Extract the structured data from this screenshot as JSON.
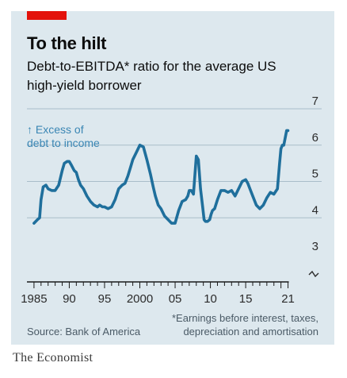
{
  "title": "To the hilt",
  "subtitle": "Debt-to-EBITDA* ratio for the average US high-yield borrower",
  "annotation_line1": "↑ Excess of",
  "annotation_line2": "debt to income",
  "source": "Source: Bank of America",
  "footnote_line1": "*Earnings before interest, taxes,",
  "footnote_line2": "depreciation and amortisation",
  "brand": "The Economist",
  "colors": {
    "line": "#1f6f9c",
    "accent": "#e3120b",
    "panel": "#dde8ee",
    "annotation": "#3a86b4"
  },
  "chart_data": {
    "type": "line",
    "title": "To the hilt",
    "subtitle": "Debt-to-EBITDA* ratio for the average US high-yield borrower",
    "xlabel": "",
    "ylabel": "",
    "ylim": [
      3,
      7
    ],
    "xlim": [
      1984,
      2021.5
    ],
    "y_ticks": [
      "3",
      "4",
      "5",
      "6",
      "7"
    ],
    "x_tick_labels": [
      {
        "x": 1985,
        "label": "1985"
      },
      {
        "x": 1990,
        "label": "90"
      },
      {
        "x": 1995,
        "label": "95"
      },
      {
        "x": 2000,
        "label": "2000"
      },
      {
        "x": 2005,
        "label": "05"
      },
      {
        "x": 2010,
        "label": "10"
      },
      {
        "x": 2015,
        "label": "15"
      },
      {
        "x": 2021,
        "label": "21"
      }
    ],
    "grid": "horizontal",
    "series": [
      {
        "x": [
          1985.0,
          1985.5,
          1985.8,
          1986.0,
          1986.3,
          1986.7,
          1987.0,
          1987.5,
          1988.0,
          1988.5,
          1989.0,
          1989.3,
          1989.7,
          1990.0,
          1990.3,
          1990.7,
          1991.0,
          1991.3,
          1991.6,
          1992.0,
          1992.5,
          1993.0,
          1993.5,
          1994.0,
          1994.3,
          1994.7,
          1995.0,
          1995.5,
          1996.0,
          1996.5,
          1997.0,
          1997.5,
          1997.9,
          1998.3,
          1998.7,
          1999.0,
          1999.5,
          2000.0,
          2000.5,
          2001.0,
          2001.5,
          2001.9,
          2002.2,
          2002.6,
          2003.0,
          2003.5,
          2004.0,
          2004.5,
          2005.0,
          2005.5,
          2006.0,
          2006.5,
          2006.8,
          2007.0,
          2007.3,
          2007.6,
          2008.0,
          2008.3,
          2008.6,
          2008.9,
          2009.1,
          2009.3,
          2009.6,
          2009.9,
          2010.1,
          2010.3,
          2010.6,
          2011.0,
          2011.5,
          2012.0,
          2012.5,
          2013.0,
          2013.5,
          2014.0,
          2014.5,
          2015.0,
          2015.3,
          2015.7,
          2016.0,
          2016.5,
          2017.0,
          2017.5,
          2018.0,
          2018.5,
          2019.0,
          2019.5,
          2019.8,
          2020.0,
          2020.2,
          2020.4,
          2020.6,
          2020.8,
          2021.0
        ],
        "y": [
          3.85,
          3.95,
          4.0,
          4.5,
          4.85,
          4.9,
          4.8,
          4.75,
          4.75,
          4.9,
          5.3,
          5.5,
          5.55,
          5.55,
          5.45,
          5.3,
          5.25,
          5.05,
          4.9,
          4.8,
          4.6,
          4.45,
          4.35,
          4.3,
          4.35,
          4.3,
          4.3,
          4.25,
          4.3,
          4.5,
          4.8,
          4.9,
          4.95,
          5.15,
          5.4,
          5.6,
          5.8,
          6.0,
          5.95,
          5.6,
          5.2,
          4.85,
          4.6,
          4.35,
          4.25,
          4.05,
          3.95,
          3.85,
          3.85,
          4.2,
          4.45,
          4.5,
          4.6,
          4.75,
          4.75,
          4.65,
          5.7,
          5.6,
          4.8,
          4.3,
          3.95,
          3.9,
          3.9,
          3.95,
          4.1,
          4.2,
          4.25,
          4.5,
          4.75,
          4.75,
          4.7,
          4.75,
          4.6,
          4.8,
          5.0,
          5.05,
          4.95,
          4.75,
          4.6,
          4.35,
          4.25,
          4.35,
          4.55,
          4.7,
          4.65,
          4.8,
          5.5,
          5.9,
          6.0,
          6.0,
          6.2,
          6.4,
          6.4
        ]
      }
    ]
  }
}
